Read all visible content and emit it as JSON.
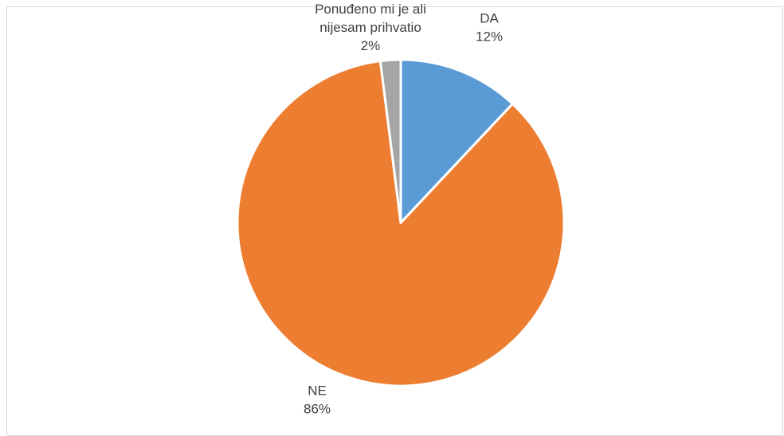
{
  "chart_data": {
    "type": "pie",
    "title": "",
    "start_angle_deg": 0,
    "direction": "clockwise",
    "slices": [
      {
        "name": "DA",
        "value": 12,
        "label_lines": [
          "DA"
        ],
        "percent_label": "12%",
        "color": "#5B9BD5"
      },
      {
        "name": "NE",
        "value": 86,
        "label_lines": [
          "NE"
        ],
        "percent_label": "86%",
        "color": "#ED7D31"
      },
      {
        "name": "Ponuđeno mi je ali nijesam prihvatio",
        "value": 2,
        "label_lines": [
          "Ponuđeno mi je ali",
          "nijesam prihvatio"
        ],
        "percent_label": "2%",
        "color": "#A5A5A5"
      }
    ],
    "legend": "none",
    "border_color": "#d9d9d9",
    "slice_edge_color": "#ffffff"
  }
}
